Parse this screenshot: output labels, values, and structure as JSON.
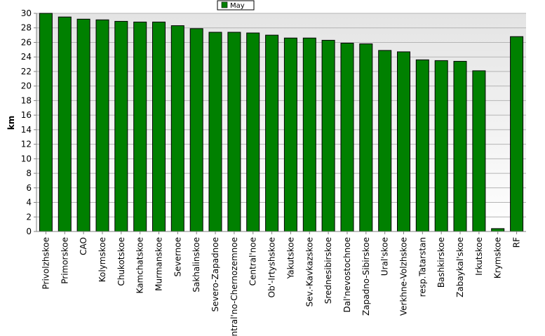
{
  "chart_data": {
    "type": "bar",
    "ylabel": "km",
    "ylim": [
      0,
      30
    ],
    "ytick_step": 2,
    "grid": true,
    "legend": "top-center",
    "series": [
      {
        "name": "May",
        "color": "#008000",
        "values": [
          30.0,
          29.5,
          29.2,
          29.1,
          28.9,
          28.8,
          28.8,
          28.3,
          27.9,
          27.4,
          27.4,
          27.3,
          27.0,
          26.6,
          26.6,
          26.3,
          25.9,
          25.8,
          24.9,
          24.7,
          23.6,
          23.5,
          23.4,
          22.1,
          0.4,
          26.8
        ]
      }
    ],
    "categories": [
      "Privolzhskoe",
      "Primorskoe",
      "CAO",
      "Kolymskoe",
      "Chukotskoe",
      "Kamchatskoe",
      "Murmanskoe",
      "Severnoe",
      "Sakhalinskoe",
      "Severo-Zapadnoe",
      "Central'no-Chernozemnoe",
      "Central'noe",
      "Ob'-Irtyshskoe",
      "Yakutskoe",
      "Sev.-Kavkazskoe",
      "Srednesibirskoe",
      "Dal'nevostochnoe",
      "Zapadno-Sibirskoe",
      "Ural'skoe",
      "Verkhne-Volzhskoe",
      "resp.Tatarstan",
      "Bashkirskoe",
      "Zabaykal'skoe",
      "Irkutskoe",
      "Krymskoe",
      "RF"
    ]
  }
}
